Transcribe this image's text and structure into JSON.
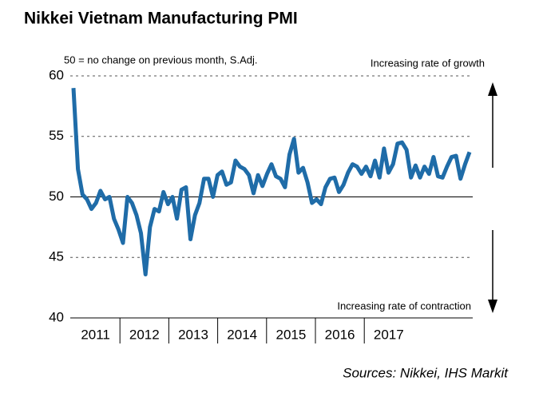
{
  "chart_data": {
    "type": "line",
    "title": "Nikkei Vietnam Manufacturing PMI",
    "note": "50 = no change on previous month, S.Adj.",
    "top_annotation": "Increasing rate of growth",
    "bottom_annotation": "Increasing rate of contraction",
    "source": "Sources: Nikkei, IHS Markit",
    "x_labels": [
      "2011",
      "2012",
      "2013",
      "2014",
      "2015",
      "2016",
      "2017"
    ],
    "series": [
      {
        "name": "PMI",
        "color": "#1f6ca8",
        "values": [
          59,
          52.3,
          50.2,
          49.8,
          49,
          49.5,
          50.5,
          49.8,
          50.0,
          48.2,
          47.3,
          46.2,
          50.0,
          49.5,
          48.5,
          47.0,
          43.6,
          47.5,
          49.0,
          48.8,
          50.4,
          49.4,
          50.0,
          48.2,
          50.6,
          50.8,
          46.5,
          48.5,
          49.5,
          51.5,
          51.5,
          50.0,
          51.8,
          52.1,
          51.0,
          51.2,
          53.0,
          52.5,
          52.3,
          51.8,
          50.3,
          51.8,
          50.9,
          51.9,
          52.7,
          51.7,
          51.5,
          50.8,
          53.5,
          54.8,
          52.0,
          52.4,
          51.2,
          49.5,
          49.8,
          49.4,
          50.8,
          51.5,
          51.6,
          50.4,
          51.0,
          52.0,
          52.7,
          52.5,
          51.9,
          52.5,
          51.7,
          53.0,
          51.6,
          54.0,
          52.0,
          52.7,
          54.4,
          54.5,
          53.9,
          51.6,
          52.6,
          51.6,
          52.5,
          51.9,
          53.3,
          51.7,
          51.6,
          52.5,
          53.3,
          53.4,
          51.5,
          52.7,
          53.7
        ]
      }
    ],
    "ylim": [
      40,
      60
    ],
    "yticks": [
      40,
      45,
      50,
      55,
      60
    ],
    "grid": true,
    "reference_line": 50
  }
}
